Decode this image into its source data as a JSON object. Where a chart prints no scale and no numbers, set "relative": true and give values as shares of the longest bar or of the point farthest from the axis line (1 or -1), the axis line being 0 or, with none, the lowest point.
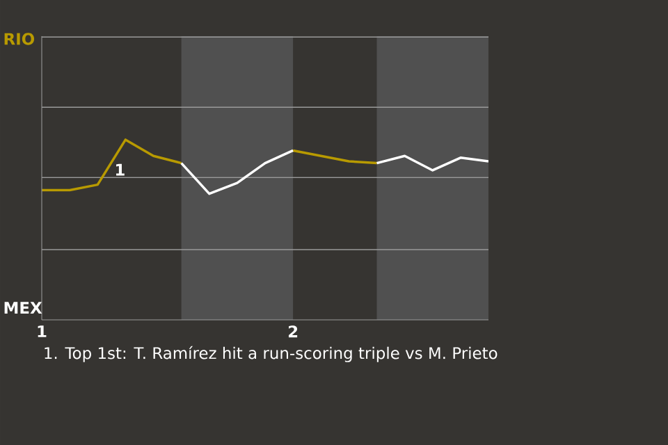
{
  "chart_data": {
    "type": "line",
    "categories": [
      "1",
      null,
      null,
      null,
      null,
      null,
      null,
      null,
      null,
      "2",
      null,
      null,
      null,
      null,
      null,
      null,
      null
    ],
    "relative": true,
    "series": [
      {
        "color": "#b89a00",
        "values": [
          0.72,
          0.72,
          0.75,
          1,
          0.91,
          0.87,
          null,
          null,
          null,
          0.94,
          0.91,
          0.88,
          0.87,
          null,
          null,
          null,
          null
        ]
      },
      {
        "color": "#ffffff",
        "values": [
          null,
          null,
          null,
          null,
          null,
          0.87,
          0.7,
          0.76,
          0.87,
          0.94,
          null,
          null,
          0.87,
          0.91,
          0.83,
          0.9,
          0.88
        ]
      }
    ],
    "ref_lines": [
      {
        "axis": "y",
        "value": 0.39
      },
      {
        "axis": "y",
        "value": 0.79
      },
      {
        "axis": "y",
        "value": 1.18
      },
      {
        "axis": "y",
        "value": 1.57
      }
    ],
    "annotations": [
      "RIO",
      "MEX",
      "1",
      "1. Top 1st: T. Ramírez hit a run-scoring triple vs M. Prieto"
    ]
  }
}
